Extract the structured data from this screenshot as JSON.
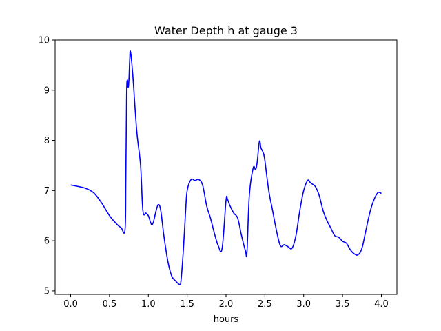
{
  "chart_data": {
    "type": "line",
    "title": "Water Depth h at gauge 3",
    "xlabel": "hours",
    "ylabel": "",
    "xlim": [
      -0.2,
      4.2
    ],
    "ylim": [
      4.93,
      10.0
    ],
    "x_ticks": [
      0.0,
      0.5,
      1.0,
      1.5,
      2.0,
      2.5,
      3.0,
      3.5,
      4.0
    ],
    "x_tick_labels": [
      "0.0",
      "0.5",
      "1.0",
      "1.5",
      "2.0",
      "2.5",
      "3.0",
      "3.5",
      "4.0"
    ],
    "y_ticks": [
      5,
      6,
      7,
      8,
      9,
      10
    ],
    "y_tick_labels": [
      "5",
      "6",
      "7",
      "8",
      "9",
      "10"
    ],
    "grid": false,
    "series": [
      {
        "color": "#0000ff",
        "x": [
          0.0,
          0.1,
          0.2,
          0.3,
          0.4,
          0.5,
          0.6,
          0.65,
          0.7,
          0.71,
          0.72,
          0.73,
          0.74,
          0.75,
          0.76,
          0.77,
          0.8,
          0.85,
          0.9,
          0.93,
          0.97,
          1.0,
          1.05,
          1.1,
          1.13,
          1.16,
          1.2,
          1.25,
          1.3,
          1.35,
          1.4,
          1.42,
          1.45,
          1.48,
          1.5,
          1.55,
          1.6,
          1.65,
          1.7,
          1.75,
          1.8,
          1.85,
          1.9,
          1.95,
          2.0,
          2.02,
          2.05,
          2.1,
          2.15,
          2.2,
          2.25,
          2.27,
          2.3,
          2.35,
          2.38,
          2.4,
          2.43,
          2.45,
          2.48,
          2.5,
          2.55,
          2.6,
          2.65,
          2.7,
          2.75,
          2.8,
          2.85,
          2.9,
          2.95,
          3.0,
          3.05,
          3.08,
          3.1,
          3.15,
          3.2,
          3.25,
          3.3,
          3.35,
          3.4,
          3.45,
          3.5,
          3.55,
          3.6,
          3.65,
          3.7,
          3.75,
          3.8,
          3.85,
          3.9,
          3.95,
          3.98,
          4.0
        ],
        "y": [
          7.11,
          7.08,
          7.04,
          6.95,
          6.75,
          6.5,
          6.32,
          6.26,
          6.22,
          7.2,
          8.9,
          9.2,
          9.05,
          9.2,
          9.6,
          9.77,
          9.3,
          8.2,
          7.5,
          6.6,
          6.55,
          6.5,
          6.32,
          6.6,
          6.72,
          6.6,
          6.1,
          5.6,
          5.3,
          5.2,
          5.13,
          5.2,
          5.8,
          6.6,
          7.0,
          7.22,
          7.2,
          7.22,
          7.1,
          6.7,
          6.45,
          6.15,
          5.9,
          5.85,
          6.8,
          6.82,
          6.7,
          6.55,
          6.45,
          6.1,
          5.8,
          5.78,
          6.9,
          7.45,
          7.42,
          7.55,
          7.98,
          7.85,
          7.75,
          7.6,
          7.0,
          6.6,
          6.2,
          5.9,
          5.92,
          5.88,
          5.85,
          6.1,
          6.6,
          7.0,
          7.2,
          7.17,
          7.14,
          7.08,
          6.9,
          6.6,
          6.4,
          6.25,
          6.1,
          6.07,
          5.99,
          5.95,
          5.82,
          5.74,
          5.72,
          5.85,
          6.2,
          6.55,
          6.8,
          6.95,
          6.96,
          6.94
        ]
      }
    ]
  }
}
